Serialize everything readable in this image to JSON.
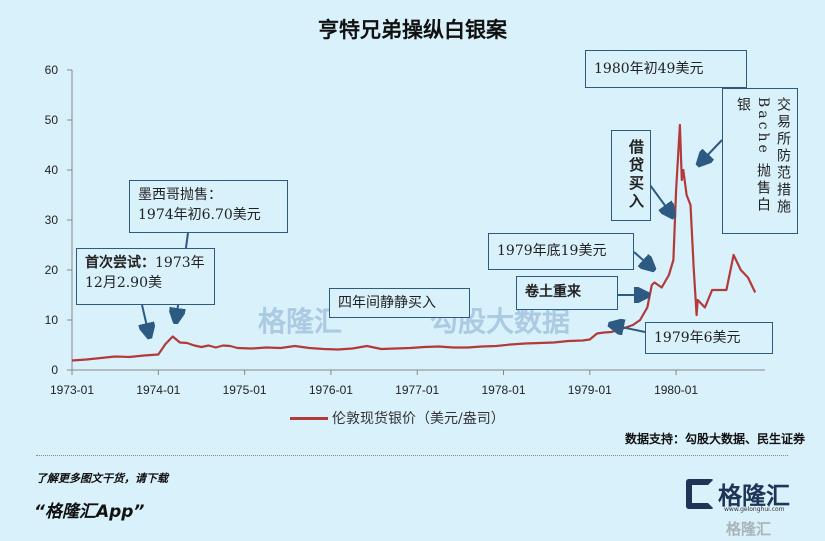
{
  "chart_data": {
    "type": "line",
    "title": "亨特兄弟操纵白银案",
    "xlabel": "",
    "ylabel": "",
    "ylim": [
      0,
      60
    ],
    "yticks": [
      "0",
      "10",
      "20",
      "30",
      "40",
      "50",
      "60"
    ],
    "xticks": [
      "1973-01",
      "1974-01",
      "1975-01",
      "1976-01",
      "1977-01",
      "1978-01",
      "1979-01",
      "1980-01"
    ],
    "legend_position": "bottom",
    "grid": false,
    "series": [
      {
        "name": "伦敦现货银价（美元/盎司）",
        "color": "#b23a3a",
        "x": [
          "1973-01",
          "1973-03",
          "1973-05",
          "1973-07",
          "1973-09",
          "1973-11",
          "1974-01",
          "1974-02",
          "1974-03",
          "1974-04",
          "1974-05",
          "1974-06",
          "1974-07",
          "1974-08",
          "1974-09",
          "1974-10",
          "1974-11",
          "1974-12",
          "1975-02",
          "1975-04",
          "1975-06",
          "1975-08",
          "1975-10",
          "1975-12",
          "1976-02",
          "1976-04",
          "1976-06",
          "1976-08",
          "1976-10",
          "1976-12",
          "1977-02",
          "1977-04",
          "1977-06",
          "1977-08",
          "1977-10",
          "1977-12",
          "1978-02",
          "1978-04",
          "1978-06",
          "1978-08",
          "1978-10",
          "1978-12",
          "1979-01",
          "1979-02",
          "1979-03",
          "1979-04",
          "1979-05",
          "1979-06",
          "1979-07",
          "1979-08",
          "1979-09",
          "1979-09-20",
          "1979-10",
          "1979-11",
          "1979-12",
          "1979-12-20",
          "1980-01",
          "1980-01-17",
          "1980-01-25",
          "1980-02",
          "1980-02-15",
          "1980-03",
          "1980-03-15",
          "1980-03-27",
          "1980-04",
          "1980-05",
          "1980-06",
          "1980-07",
          "1980-08",
          "1980-09",
          "1980-10",
          "1980-11",
          "1980-12"
        ],
        "values": [
          1.9,
          2.1,
          2.4,
          2.7,
          2.6,
          2.9,
          3.1,
          5.2,
          6.7,
          5.5,
          5.4,
          4.9,
          4.6,
          4.9,
          4.5,
          4.9,
          4.8,
          4.4,
          4.3,
          4.5,
          4.4,
          4.8,
          4.4,
          4.2,
          4.1,
          4.3,
          4.8,
          4.2,
          4.3,
          4.4,
          4.6,
          4.7,
          4.5,
          4.5,
          4.7,
          4.8,
          5.1,
          5.3,
          5.4,
          5.5,
          5.8,
          5.9,
          6.1,
          7.3,
          7.5,
          7.6,
          8.0,
          8.5,
          9.0,
          10.0,
          12.5,
          17.0,
          17.5,
          16.5,
          19.0,
          22.0,
          36.0,
          49.0,
          38.0,
          40.0,
          35.0,
          33.0,
          20.0,
          11.0,
          14.0,
          12.5,
          16.0,
          16.0,
          16.0,
          23.0,
          20.0,
          18.5,
          15.5
        ]
      }
    ]
  },
  "annotations": {
    "peak": "1980年初49美元",
    "exchange_col1": "交易所防范措施",
    "exchange_col2": "Bache 抛售白银",
    "borrow": "借贷买入",
    "mexico_line1": "墨西哥抛售：",
    "mexico_line2": "1974年初6.70美元",
    "first_try_bold": "首次尝试：",
    "first_try_rest": "1973年12月2.90美",
    "quiet": "四年间静静买入",
    "end1979": "1979年底19美元",
    "comeback": "卷土重来",
    "june1979": "1979年6美元"
  },
  "source": "数据支持：勾股大数据、民生证券",
  "footer": {
    "promo_line1": "了解更多图文干货，请下载",
    "promo_line2": "“格隆汇App”",
    "logo_name": "格隆汇",
    "logo_url": "www.gelonghui.com"
  },
  "watermarks": {
    "left": "格隆汇",
    "right": "勾股大数据",
    "bottom": "格隆汇"
  }
}
